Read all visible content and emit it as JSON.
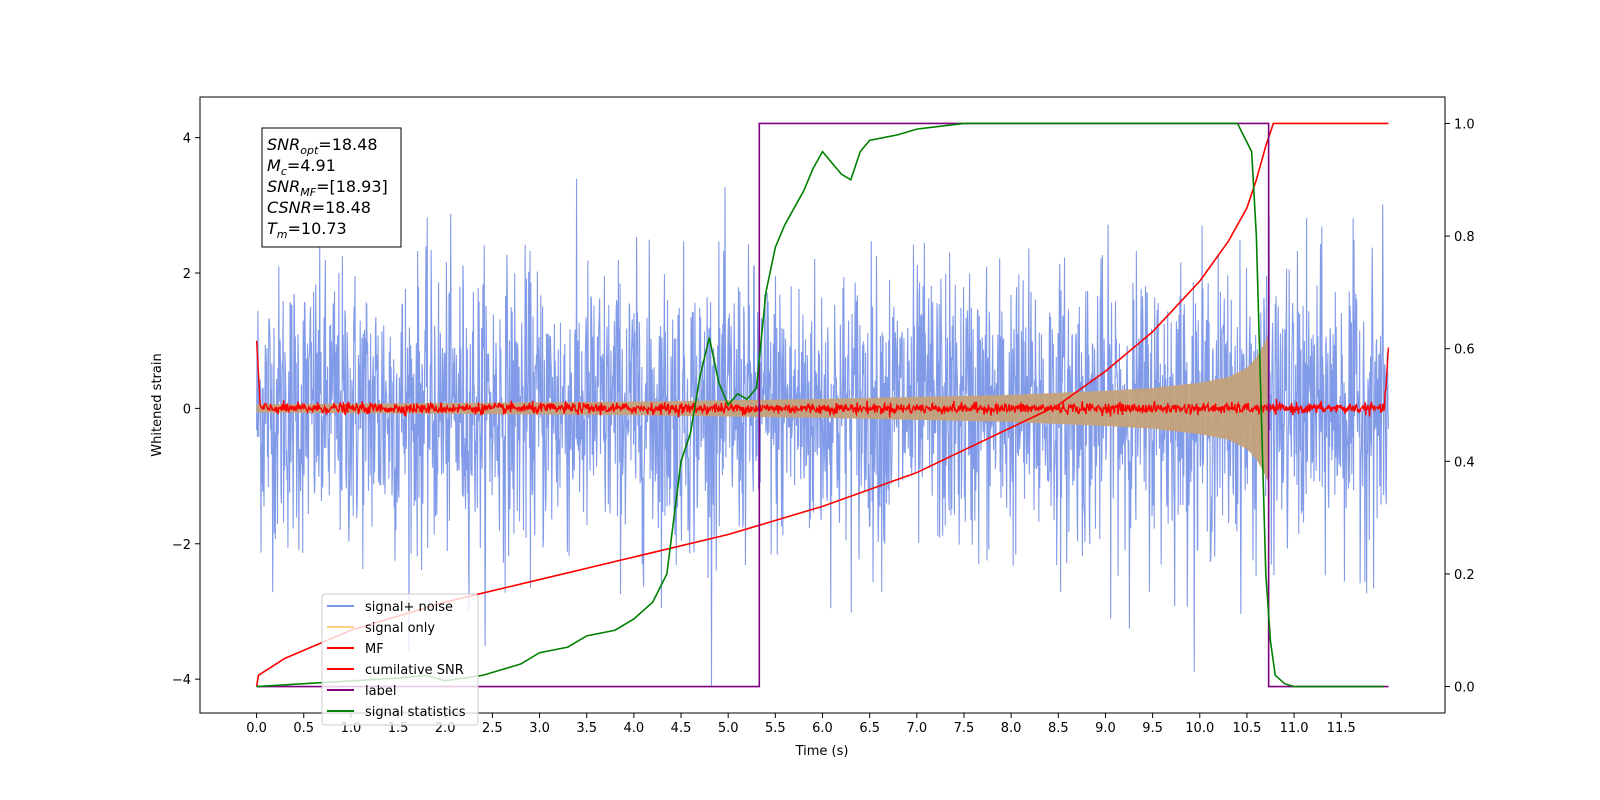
{
  "chart_data": {
    "type": "line",
    "title": "",
    "xlabel": "Time (s)",
    "ylabel": "Whitened strain",
    "xlim": [
      -0.6,
      12.6
    ],
    "ylim": [
      -4.5,
      4.6
    ],
    "y2lim": [
      -0.047,
      1.047
    ],
    "x_ticks": [
      0.0,
      0.5,
      1.0,
      1.5,
      2.0,
      2.5,
      3.0,
      3.5,
      4.0,
      4.5,
      5.0,
      5.5,
      6.0,
      6.5,
      7.0,
      7.5,
      8.0,
      8.5,
      9.0,
      9.5,
      10.0,
      10.5,
      11.0,
      11.5
    ],
    "x_tick_labels": [
      "0.0",
      "0.5",
      "1.0",
      "1.5",
      "2.0",
      "2.5",
      "3.0",
      "3.5",
      "4.0",
      "4.5",
      "5.0",
      "5.5",
      "6.0",
      "6.5",
      "7.0",
      "7.5",
      "8.0",
      "8.5",
      "9.0",
      "9.5",
      "10.0",
      "10.5",
      "11.0",
      "11.5"
    ],
    "y_ticks": [
      -4,
      -2,
      0,
      2,
      4
    ],
    "y_tick_labels": [
      "−4",
      "−2",
      "0",
      "2",
      "4"
    ],
    "y2_ticks": [
      0.0,
      0.2,
      0.4,
      0.6,
      0.8,
      1.0
    ],
    "y2_tick_labels": [
      "0.0",
      "0.2",
      "0.4",
      "0.6",
      "0.8",
      "1.0"
    ],
    "grid": false,
    "legend_position": "lower-left",
    "annotation": [
      {
        "sym": "SNR",
        "sub": "opt",
        "val": "=18.48"
      },
      {
        "sym": "M",
        "sub": "c",
        "val": "=4.91"
      },
      {
        "sym": "SNR",
        "sub": "MF",
        "val": "=[18.93]"
      },
      {
        "sym": "CSNR",
        "sub": "",
        "val": "=18.48"
      },
      {
        "sym": "T",
        "sub": "m",
        "val": "=10.73"
      }
    ],
    "signal_params": {
      "t_start": 0.0,
      "t_end": 12.0,
      "merger_time": 10.73
    },
    "series": [
      {
        "name": "signal+ noise",
        "color": "#7b96e8",
        "axis": "left",
        "kind": "noise-band",
        "envelope": {
          "mean": 0.0,
          "typical_amplitude": 2.3,
          "max": 3.75,
          "min": -4.1
        }
      },
      {
        "name": "signal only",
        "color": "#ffd080",
        "axis": "left",
        "kind": "chirp-envelope",
        "envelope_x": [
          0.0,
          2.0,
          4.0,
          6.0,
          8.0,
          9.0,
          9.5,
          10.0,
          10.3,
          10.5,
          10.6,
          10.68,
          10.73
        ],
        "envelope_y": [
          0.06,
          0.08,
          0.1,
          0.14,
          0.2,
          0.26,
          0.3,
          0.38,
          0.46,
          0.6,
          0.75,
          0.95,
          1.1
        ]
      },
      {
        "name": "MF",
        "color": "#ff0000",
        "axis": "left",
        "kind": "noise-line",
        "envelope": {
          "mean": 0.0,
          "typical_amplitude": 0.1,
          "edge_values": [
            1.0,
            0.9
          ]
        }
      },
      {
        "name": "cumilative SNR",
        "color": "#ff0000",
        "axis": "right",
        "x": [
          0.0,
          0.02,
          0.3,
          1.0,
          2.0,
          3.0,
          4.0,
          5.0,
          6.0,
          7.0,
          8.0,
          8.5,
          9.0,
          9.5,
          10.0,
          10.3,
          10.5,
          10.6,
          10.7,
          10.78,
          12.0
        ],
        "y": [
          0.0,
          0.02,
          0.05,
          0.1,
          0.15,
          0.19,
          0.23,
          0.27,
          0.32,
          0.38,
          0.46,
          0.5,
          0.56,
          0.63,
          0.72,
          0.79,
          0.85,
          0.9,
          0.96,
          1.0,
          1.0
        ]
      },
      {
        "name": "label",
        "color": "#800080",
        "axis": "right",
        "x": [
          0.0,
          5.33,
          5.33,
          10.73,
          10.73,
          12.0
        ],
        "y": [
          0.0,
          0.0,
          1.0,
          1.0,
          0.0,
          0.0
        ]
      },
      {
        "name": "signal statistics",
        "color": "#008000",
        "axis": "right",
        "x": [
          0.0,
          0.5,
          1.0,
          1.5,
          1.8,
          2.0,
          2.2,
          2.4,
          2.6,
          2.8,
          3.0,
          3.3,
          3.5,
          3.8,
          4.0,
          4.2,
          4.35,
          4.5,
          4.6,
          4.7,
          4.8,
          4.9,
          5.0,
          5.1,
          5.2,
          5.3,
          5.4,
          5.5,
          5.6,
          5.7,
          5.8,
          5.9,
          6.0,
          6.1,
          6.2,
          6.3,
          6.4,
          6.5,
          6.8,
          7.0,
          7.5,
          8.0,
          8.5,
          9.0,
          9.5,
          10.0,
          10.4,
          10.55,
          10.6,
          10.65,
          10.7,
          10.75,
          10.8,
          10.9,
          11.0,
          11.5,
          11.95
        ],
        "y": [
          0.0,
          0.005,
          0.01,
          0.015,
          0.02,
          0.01,
          0.015,
          0.02,
          0.03,
          0.04,
          0.06,
          0.07,
          0.09,
          0.1,
          0.12,
          0.15,
          0.2,
          0.4,
          0.45,
          0.55,
          0.62,
          0.54,
          0.5,
          0.52,
          0.51,
          0.53,
          0.7,
          0.78,
          0.82,
          0.85,
          0.88,
          0.92,
          0.95,
          0.93,
          0.91,
          0.9,
          0.95,
          0.97,
          0.98,
          0.99,
          1.0,
          1.0,
          1.0,
          1.0,
          1.0,
          1.0,
          1.0,
          0.95,
          0.8,
          0.5,
          0.2,
          0.08,
          0.02,
          0.005,
          0.0,
          0.0,
          0.0
        ]
      }
    ]
  }
}
